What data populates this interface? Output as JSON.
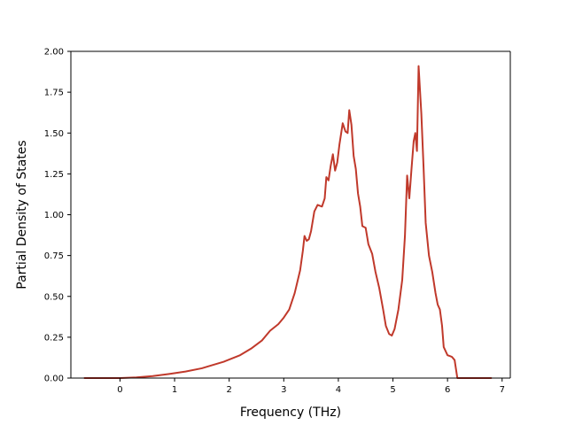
{
  "chart_data": {
    "type": "line",
    "title": "",
    "xlabel": "Frequency (THz)",
    "ylabel": "Partial Density of States",
    "xlim": [
      -0.9,
      7.15
    ],
    "ylim": [
      0,
      2.0
    ],
    "xticks": [
      0,
      1,
      2,
      3,
      4,
      5,
      6,
      7
    ],
    "yticks": [
      0.0,
      0.25,
      0.5,
      0.75,
      1.0,
      1.25,
      1.5,
      1.75,
      2.0
    ],
    "xtick_labels": [
      "0",
      "1",
      "2",
      "3",
      "4",
      "5",
      "6",
      "7"
    ],
    "ytick_labels": [
      "0.00",
      "0.25",
      "0.50",
      "0.75",
      "1.00",
      "1.25",
      "1.50",
      "1.75",
      "2.00"
    ],
    "grid": false,
    "colors": {
      "line": "#c0392b",
      "axes": "#000000"
    },
    "series": [
      {
        "points": [
          [
            -0.65,
            0.0
          ],
          [
            0.0,
            0.0
          ],
          [
            0.3,
            0.004
          ],
          [
            0.6,
            0.012
          ],
          [
            0.9,
            0.025
          ],
          [
            1.2,
            0.04
          ],
          [
            1.5,
            0.06
          ],
          [
            1.6,
            0.07
          ],
          [
            1.9,
            0.1
          ],
          [
            2.2,
            0.14
          ],
          [
            2.4,
            0.18
          ],
          [
            2.6,
            0.23
          ],
          [
            2.75,
            0.29
          ],
          [
            2.9,
            0.33
          ],
          [
            3.0,
            0.37
          ],
          [
            3.1,
            0.42
          ],
          [
            3.2,
            0.52
          ],
          [
            3.3,
            0.66
          ],
          [
            3.35,
            0.78
          ],
          [
            3.38,
            0.87
          ],
          [
            3.42,
            0.84
          ],
          [
            3.46,
            0.85
          ],
          [
            3.5,
            0.9
          ],
          [
            3.56,
            1.02
          ],
          [
            3.62,
            1.06
          ],
          [
            3.7,
            1.05
          ],
          [
            3.75,
            1.1
          ],
          [
            3.78,
            1.23
          ],
          [
            3.82,
            1.21
          ],
          [
            3.86,
            1.3
          ],
          [
            3.9,
            1.37
          ],
          [
            3.94,
            1.27
          ],
          [
            3.98,
            1.32
          ],
          [
            4.02,
            1.43
          ],
          [
            4.08,
            1.56
          ],
          [
            4.13,
            1.51
          ],
          [
            4.17,
            1.5
          ],
          [
            4.2,
            1.64
          ],
          [
            4.24,
            1.55
          ],
          [
            4.28,
            1.36
          ],
          [
            4.32,
            1.28
          ],
          [
            4.36,
            1.13
          ],
          [
            4.4,
            1.05
          ],
          [
            4.44,
            0.93
          ],
          [
            4.5,
            0.92
          ],
          [
            4.55,
            0.82
          ],
          [
            4.62,
            0.76
          ],
          [
            4.68,
            0.65
          ],
          [
            4.75,
            0.55
          ],
          [
            4.82,
            0.42
          ],
          [
            4.87,
            0.32
          ],
          [
            4.93,
            0.27
          ],
          [
            4.98,
            0.26
          ],
          [
            5.03,
            0.3
          ],
          [
            5.1,
            0.42
          ],
          [
            5.17,
            0.6
          ],
          [
            5.22,
            0.87
          ],
          [
            5.26,
            1.24
          ],
          [
            5.3,
            1.1
          ],
          [
            5.34,
            1.28
          ],
          [
            5.38,
            1.45
          ],
          [
            5.41,
            1.5
          ],
          [
            5.44,
            1.39
          ],
          [
            5.47,
            1.91
          ],
          [
            5.52,
            1.62
          ],
          [
            5.56,
            1.3
          ],
          [
            5.6,
            0.95
          ],
          [
            5.66,
            0.75
          ],
          [
            5.72,
            0.65
          ],
          [
            5.78,
            0.52
          ],
          [
            5.82,
            0.45
          ],
          [
            5.86,
            0.42
          ],
          [
            5.9,
            0.32
          ],
          [
            5.93,
            0.19
          ],
          [
            6.0,
            0.14
          ],
          [
            6.08,
            0.13
          ],
          [
            6.13,
            0.11
          ],
          [
            6.18,
            0.0
          ],
          [
            6.8,
            0.0
          ]
        ]
      }
    ]
  }
}
